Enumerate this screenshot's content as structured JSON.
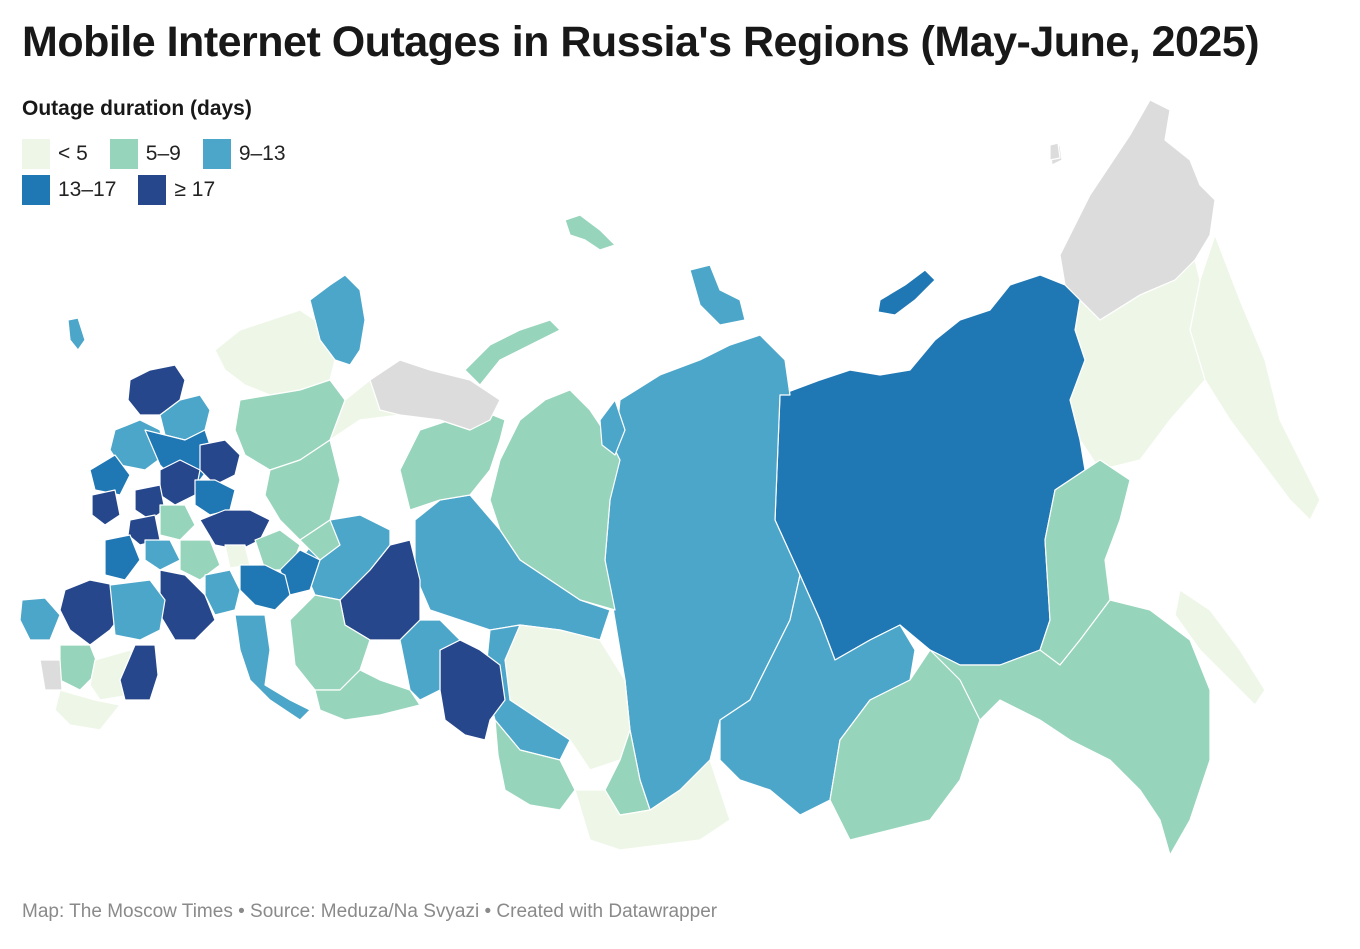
{
  "title": "Mobile Internet Outages in Russia's Regions (May-June, 2025)",
  "legend": {
    "title": "Outage duration (days)",
    "bins": [
      {
        "label": "< 5",
        "color": "#eef7e7"
      },
      {
        "label": "5–9",
        "color": "#96d4bb"
      },
      {
        "label": "9–13",
        "color": "#4ca6c9"
      },
      {
        "label": "13–17",
        "color": "#1f77b4"
      },
      {
        "label": "≥ 17",
        "color": "#26478b"
      }
    ]
  },
  "no_data_color": "#dcdcdc",
  "credit": "Map: The Moscow Times • Source: Meduza/Na Svyazi • Created with Datawrapper"
}
